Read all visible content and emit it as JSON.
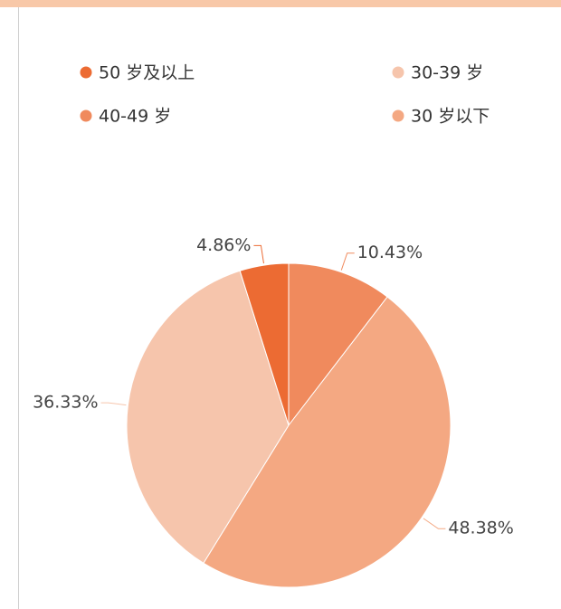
{
  "chart_data": {
    "type": "pie",
    "categories": [
      "40-49 岁",
      "30 岁以下",
      "30-39 岁",
      "50 岁及以上"
    ],
    "values": [
      10.43,
      48.38,
      36.33,
      4.86
    ],
    "value_labels": [
      "10.43%",
      "48.38%",
      "36.33%",
      "4.86%"
    ],
    "colors": [
      "#f08a5d",
      "#f4a882",
      "#f6c5ac",
      "#ec6b33"
    ]
  }
}
